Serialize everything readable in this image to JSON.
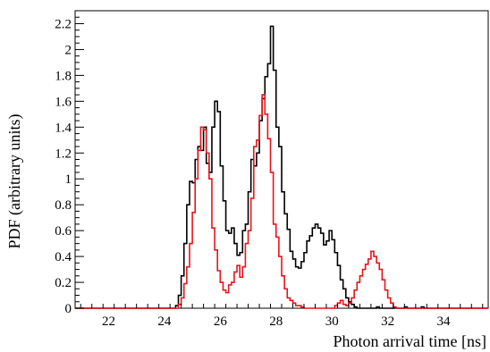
{
  "chart_data": {
    "type": "line",
    "title": "",
    "xlabel": "Photon arrival time [ns]",
    "ylabel": "PDF (arbitrary units)",
    "xlim": [
      20.8,
      35.6
    ],
    "ylim": [
      0,
      2.3
    ],
    "grid": false,
    "legend": "none",
    "x_ticks": [
      "22",
      "24",
      "26",
      "28",
      "30",
      "32",
      "34"
    ],
    "y_ticks": [
      "0",
      "0.2",
      "0.4",
      "0.6",
      "0.8",
      "1",
      "1.2",
      "1.4",
      "1.6",
      "1.8",
      "2",
      "2.2"
    ],
    "bin_width": 0.1,
    "series": [
      {
        "color": "#000000",
        "step": true,
        "points": [
          [
            20.8,
            0
          ],
          [
            24.3,
            0
          ],
          [
            24.4,
            0.02
          ],
          [
            24.5,
            0.1
          ],
          [
            24.6,
            0.25
          ],
          [
            24.7,
            0.5
          ],
          [
            24.8,
            0.8
          ],
          [
            24.9,
            0.98
          ],
          [
            25.0,
            0.97
          ],
          [
            25.1,
            1.15
          ],
          [
            25.2,
            1.25
          ],
          [
            25.3,
            1.22
          ],
          [
            25.4,
            1.4
          ],
          [
            25.5,
            1.12
          ],
          [
            25.6,
            1.05
          ],
          [
            25.7,
            1.4
          ],
          [
            25.8,
            1.6
          ],
          [
            25.9,
            1.52
          ],
          [
            26.0,
            1.1
          ],
          [
            26.1,
            0.83
          ],
          [
            26.2,
            0.6
          ],
          [
            26.3,
            0.58
          ],
          [
            26.4,
            0.62
          ],
          [
            26.5,
            0.5
          ],
          [
            26.6,
            0.41
          ],
          [
            26.7,
            0.43
          ],
          [
            26.8,
            0.6
          ],
          [
            26.9,
            0.65
          ],
          [
            27.0,
            0.9
          ],
          [
            27.1,
            1.15
          ],
          [
            27.2,
            1.1
          ],
          [
            27.3,
            1.2
          ],
          [
            27.4,
            1.45
          ],
          [
            27.5,
            1.62
          ],
          [
            27.6,
            1.79
          ],
          [
            27.7,
            1.89
          ],
          [
            27.8,
            2.18
          ],
          [
            27.9,
            1.84
          ],
          [
            28.0,
            1.4
          ],
          [
            28.1,
            1.25
          ],
          [
            28.2,
            0.9
          ],
          [
            28.3,
            0.73
          ],
          [
            28.4,
            0.61
          ],
          [
            28.5,
            0.44
          ],
          [
            28.6,
            0.38
          ],
          [
            28.7,
            0.32
          ],
          [
            28.8,
            0.31
          ],
          [
            28.9,
            0.36
          ],
          [
            29.0,
            0.43
          ],
          [
            29.1,
            0.52
          ],
          [
            29.2,
            0.56
          ],
          [
            29.3,
            0.62
          ],
          [
            29.4,
            0.65
          ],
          [
            29.5,
            0.62
          ],
          [
            29.6,
            0.58
          ],
          [
            29.7,
            0.49
          ],
          [
            29.8,
            0.52
          ],
          [
            29.9,
            0.6
          ],
          [
            30.0,
            0.53
          ],
          [
            30.1,
            0.43
          ],
          [
            30.2,
            0.33
          ],
          [
            30.3,
            0.22
          ],
          [
            30.4,
            0.15
          ],
          [
            30.5,
            0.08
          ],
          [
            30.6,
            0.05
          ],
          [
            30.7,
            0.03
          ],
          [
            30.8,
            0.01
          ],
          [
            30.9,
            0
          ],
          [
            31.5,
            0
          ],
          [
            31.6,
            0.01
          ],
          [
            31.7,
            0
          ],
          [
            32.5,
            0
          ],
          [
            32.6,
            0.01
          ],
          [
            32.7,
            0
          ],
          [
            33.2,
            0.01
          ],
          [
            33.3,
            0
          ],
          [
            35.6,
            0
          ]
        ]
      },
      {
        "color": "#e8141b",
        "step": true,
        "points": [
          [
            20.8,
            0
          ],
          [
            24.4,
            0
          ],
          [
            24.5,
            0.03
          ],
          [
            24.6,
            0.08
          ],
          [
            24.7,
            0.19
          ],
          [
            24.8,
            0.32
          ],
          [
            24.9,
            0.5
          ],
          [
            25.0,
            0.74
          ],
          [
            25.1,
            1.0
          ],
          [
            25.2,
            1.22
          ],
          [
            25.3,
            1.4
          ],
          [
            25.4,
            1.38
          ],
          [
            25.5,
            1.2
          ],
          [
            25.6,
            1.0
          ],
          [
            25.7,
            0.62
          ],
          [
            25.8,
            0.45
          ],
          [
            25.9,
            0.29
          ],
          [
            26.0,
            0.2
          ],
          [
            26.1,
            0.14
          ],
          [
            26.2,
            0.12
          ],
          [
            26.3,
            0.18
          ],
          [
            26.4,
            0.2
          ],
          [
            26.5,
            0.28
          ],
          [
            26.6,
            0.33
          ],
          [
            26.7,
            0.24
          ],
          [
            26.8,
            0.32
          ],
          [
            26.9,
            0.5
          ],
          [
            27.0,
            0.6
          ],
          [
            27.1,
            0.85
          ],
          [
            27.2,
            1.25
          ],
          [
            27.3,
            1.3
          ],
          [
            27.4,
            1.49
          ],
          [
            27.5,
            1.65
          ],
          [
            27.6,
            1.5
          ],
          [
            27.7,
            1.31
          ],
          [
            27.8,
            1.05
          ],
          [
            27.9,
            0.65
          ],
          [
            28.0,
            0.55
          ],
          [
            28.1,
            0.4
          ],
          [
            28.2,
            0.25
          ],
          [
            28.3,
            0.15
          ],
          [
            28.4,
            0.08
          ],
          [
            28.5,
            0.06
          ],
          [
            28.6,
            0.04
          ],
          [
            28.7,
            0.02
          ],
          [
            28.8,
            0.02
          ],
          [
            28.9,
            0.01
          ],
          [
            29.0,
            0
          ],
          [
            30.0,
            0
          ],
          [
            30.1,
            0.02
          ],
          [
            30.2,
            0.04
          ],
          [
            30.3,
            0.06
          ],
          [
            30.4,
            0.03
          ],
          [
            30.5,
            0.02
          ],
          [
            30.6,
            0.04
          ],
          [
            30.7,
            0.08
          ],
          [
            30.8,
            0.14
          ],
          [
            30.9,
            0.2
          ],
          [
            31.0,
            0.25
          ],
          [
            31.1,
            0.3
          ],
          [
            31.2,
            0.34
          ],
          [
            31.3,
            0.38
          ],
          [
            31.4,
            0.44
          ],
          [
            31.5,
            0.4
          ],
          [
            31.6,
            0.35
          ],
          [
            31.7,
            0.3
          ],
          [
            31.8,
            0.22
          ],
          [
            31.9,
            0.14
          ],
          [
            32.0,
            0.08
          ],
          [
            32.1,
            0.04
          ],
          [
            32.2,
            0.01
          ],
          [
            32.3,
            0
          ],
          [
            35.6,
            0
          ]
        ]
      }
    ]
  }
}
